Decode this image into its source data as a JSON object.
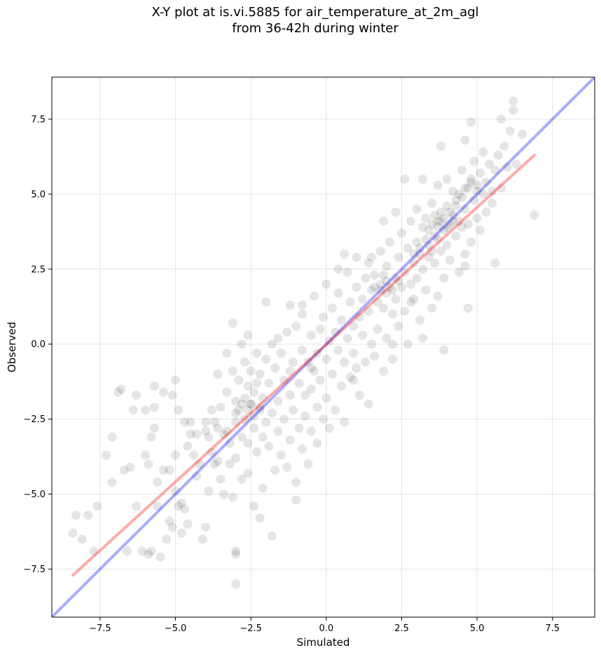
{
  "chart_data": {
    "type": "scatter",
    "title": "X-Y plot at is.vi.5885 for air_temperature_at_2m_agl\nfrom 36-42h during winter",
    "xlabel": "Simulated",
    "ylabel": "Observed",
    "xlim": [
      -9.1,
      8.9
    ],
    "ylim": [
      -9.1,
      8.9
    ],
    "xticks": [
      -7.5,
      -5.0,
      -2.5,
      0.0,
      2.5,
      5.0,
      7.5
    ],
    "xtick_labels": [
      "−7.5",
      "−5.0",
      "−2.5",
      "0.0",
      "2.5",
      "5.0",
      "7.5"
    ],
    "yticks": [
      -7.5,
      -5.0,
      -2.5,
      0.0,
      2.5,
      5.0,
      7.5
    ],
    "ytick_labels": [
      "−7.5",
      "−5.0",
      "−2.5",
      "0.0",
      "2.5",
      "5.0",
      "7.5"
    ],
    "grid": true,
    "colors": {
      "points": "#000000",
      "identity_line": "#0000ff",
      "fit_line": "#ff0000"
    },
    "identity_line": {
      "x": [
        -9.1,
        8.9
      ],
      "y": [
        -9.1,
        8.9
      ]
    },
    "fit_line": {
      "x": [
        -8.4,
        6.9
      ],
      "y": [
        -7.7,
        6.3
      ]
    },
    "points": [
      [
        -8.4,
        -6.3
      ],
      [
        -8.3,
        -5.7
      ],
      [
        -8.1,
        -6.5
      ],
      [
        -7.9,
        -5.7
      ],
      [
        -7.7,
        -6.9
      ],
      [
        -7.6,
        -5.4
      ],
      [
        -7.3,
        -3.7
      ],
      [
        -7.1,
        -3.1
      ],
      [
        -7.1,
        -4.6
      ],
      [
        -6.9,
        -1.6
      ],
      [
        -6.8,
        -1.5
      ],
      [
        -6.7,
        -4.2
      ],
      [
        -6.6,
        -6.9
      ],
      [
        -6.5,
        -4.1
      ],
      [
        -6.4,
        -2.2
      ],
      [
        -6.3,
        -1.7
      ],
      [
        -6.3,
        -5.4
      ],
      [
        -6.1,
        -6.9
      ],
      [
        -6.0,
        -3.7
      ],
      [
        -6.0,
        -2.2
      ],
      [
        -5.9,
        -7.0
      ],
      [
        -5.9,
        -4.0
      ],
      [
        -5.8,
        -3.1
      ],
      [
        -5.8,
        -6.9
      ],
      [
        -5.7,
        -1.4
      ],
      [
        -5.7,
        -2.1
      ],
      [
        -5.7,
        -2.8
      ],
      [
        -5.6,
        -5.4
      ],
      [
        -5.6,
        -4.6
      ],
      [
        -5.5,
        -7.1
      ],
      [
        -5.4,
        -1.6
      ],
      [
        -5.4,
        -4.2
      ],
      [
        -5.3,
        -6.5
      ],
      [
        -5.2,
        -5.9
      ],
      [
        -5.1,
        -1.7
      ],
      [
        -5.1,
        -6.1
      ],
      [
        -5.0,
        -1.2
      ],
      [
        -5.0,
        -3.7
      ],
      [
        -5.0,
        -4.9
      ],
      [
        -4.9,
        -5.4
      ],
      [
        -4.9,
        -2.2
      ],
      [
        -4.8,
        -5.3
      ],
      [
        -4.8,
        -6.3
      ],
      [
        -4.7,
        -2.6
      ],
      [
        -4.7,
        -5.5
      ],
      [
        -4.6,
        -3.4
      ],
      [
        -4.6,
        -6.0
      ],
      [
        -4.5,
        -2.6
      ],
      [
        -4.4,
        -3.7
      ],
      [
        -4.3,
        -4.4
      ],
      [
        -4.3,
        -3.0
      ],
      [
        -4.2,
        -4.0
      ],
      [
        -4.1,
        -6.5
      ],
      [
        -4.0,
        -6.1
      ],
      [
        -4.0,
        -2.6
      ],
      [
        -3.9,
        -3.1
      ],
      [
        -3.9,
        -4.9
      ],
      [
        -3.8,
        -2.2
      ],
      [
        -3.8,
        -3.6
      ],
      [
        -3.7,
        -2.6
      ],
      [
        -3.6,
        -3.9
      ],
      [
        -3.6,
        -2.8
      ],
      [
        -3.5,
        -4.5
      ],
      [
        -3.5,
        -2.1
      ],
      [
        -3.4,
        -3.0
      ],
      [
        -3.4,
        -5.0
      ],
      [
        -3.3,
        -2.9
      ],
      [
        -3.3,
        -1.6
      ],
      [
        -3.3,
        -0.3
      ],
      [
        -3.2,
        -3.3
      ],
      [
        -3.2,
        -4.0
      ],
      [
        -3.1,
        -0.9
      ],
      [
        -3.1,
        -5.1
      ],
      [
        -3.0,
        -2.6
      ],
      [
        -3.0,
        -1.9
      ],
      [
        -3.0,
        -3.8
      ],
      [
        -3.0,
        -6.9
      ],
      [
        -3.0,
        -7.0
      ],
      [
        -3.0,
        -8.0
      ],
      [
        -2.9,
        -1.2
      ],
      [
        -2.9,
        -2.2
      ],
      [
        -2.8,
        0.0
      ],
      [
        -2.8,
        -3.1
      ],
      [
        -2.8,
        -4.5
      ],
      [
        -2.7,
        -1.8
      ],
      [
        -2.7,
        -2.5
      ],
      [
        -2.7,
        -0.6
      ],
      [
        -2.6,
        -3.3
      ],
      [
        -2.6,
        -1.4
      ],
      [
        -2.6,
        -4.3
      ],
      [
        -2.5,
        -2.0
      ],
      [
        -2.5,
        -0.9
      ],
      [
        -2.4,
        -2.8
      ],
      [
        -2.4,
        -1.6
      ],
      [
        -2.4,
        -5.4
      ],
      [
        -2.3,
        -3.6
      ],
      [
        -2.3,
        -0.3
      ],
      [
        -2.2,
        -2.2
      ],
      [
        -2.2,
        -1.0
      ],
      [
        -2.2,
        -5.8
      ],
      [
        -2.1,
        -3.1
      ],
      [
        -2.1,
        -1.8
      ],
      [
        -2.1,
        -4.8
      ],
      [
        -2.0,
        -0.5
      ],
      [
        -2.0,
        -2.6
      ],
      [
        -1.9,
        -3.4
      ],
      [
        -1.9,
        -1.3
      ],
      [
        -1.8,
        0.0
      ],
      [
        -1.8,
        -2.3
      ],
      [
        -1.8,
        -6.4
      ],
      [
        -1.7,
        -4.2
      ],
      [
        -1.7,
        -0.8
      ],
      [
        -1.6,
        -2.9
      ],
      [
        -1.6,
        -1.9
      ],
      [
        -1.5,
        -3.7
      ],
      [
        -1.5,
        -0.3
      ],
      [
        -1.4,
        -1.2
      ],
      [
        -1.4,
        -2.5
      ],
      [
        -1.3,
        -4.1
      ],
      [
        -1.3,
        0.4
      ],
      [
        -1.2,
        -1.7
      ],
      [
        -1.2,
        -3.2
      ],
      [
        -1.2,
        1.3
      ],
      [
        -1.1,
        -0.6
      ],
      [
        -1.1,
        -2.2
      ],
      [
        -1.0,
        -4.6
      ],
      [
        -1.0,
        -5.2
      ],
      [
        -1.0,
        0.6
      ],
      [
        -0.9,
        -1.3
      ],
      [
        -0.9,
        -2.8
      ],
      [
        -0.8,
        -0.2
      ],
      [
        -0.8,
        -3.5
      ],
      [
        -0.8,
        1.0
      ],
      [
        -0.7,
        -1.7
      ],
      [
        -0.7,
        -2.4
      ],
      [
        -0.6,
        -0.6
      ],
      [
        -0.6,
        -4.0
      ],
      [
        -0.5,
        0.3
      ],
      [
        -0.5,
        -1.5
      ],
      [
        -0.5,
        -2.9
      ],
      [
        -0.4,
        -0.9
      ],
      [
        -0.4,
        1.6
      ],
      [
        -0.3,
        -2.1
      ],
      [
        -0.3,
        -0.3
      ],
      [
        -0.3,
        -3.3
      ],
      [
        -0.2,
        0.5
      ],
      [
        -0.2,
        -1.2
      ],
      [
        -0.1,
        -2.5
      ],
      [
        -0.1,
        0.9
      ],
      [
        0.0,
        -0.5
      ],
      [
        0.0,
        -1.8
      ],
      [
        0.0,
        2.0
      ],
      [
        0.1,
        0.1
      ],
      [
        0.1,
        -2.8
      ],
      [
        0.2,
        1.2
      ],
      [
        0.2,
        -1.0
      ],
      [
        0.3,
        0.4
      ],
      [
        0.3,
        -2.2
      ],
      [
        0.4,
        -0.2
      ],
      [
        0.4,
        1.7
      ],
      [
        0.5,
        -1.4
      ],
      [
        0.5,
        0.8
      ],
      [
        0.6,
        -0.6
      ],
      [
        0.6,
        -2.6
      ],
      [
        0.7,
        2.4
      ],
      [
        0.7,
        0.2
      ],
      [
        0.8,
        -1.1
      ],
      [
        0.8,
        1.4
      ],
      [
        0.9,
        -0.3
      ],
      [
        0.9,
        0.6
      ],
      [
        1.0,
        1.9
      ],
      [
        1.0,
        -0.8
      ],
      [
        1.0,
        2.9
      ],
      [
        1.1,
        0.9
      ],
      [
        1.1,
        -1.7
      ],
      [
        1.2,
        1.5
      ],
      [
        1.2,
        0.3
      ],
      [
        1.3,
        2.2
      ],
      [
        1.3,
        -0.6
      ],
      [
        1.4,
        1.1
      ],
      [
        1.4,
        2.7
      ],
      [
        1.5,
        0.0
      ],
      [
        1.5,
        1.8
      ],
      [
        1.6,
        -0.4
      ],
      [
        1.6,
        2.3
      ],
      [
        1.7,
        1.4
      ],
      [
        1.7,
        0.5
      ],
      [
        1.8,
        2.0
      ],
      [
        1.8,
        3.1
      ],
      [
        1.9,
        1.2
      ],
      [
        1.9,
        -0.9
      ],
      [
        2.0,
        1.7
      ],
      [
        2.0,
        2.6
      ],
      [
        2.0,
        0.2
      ],
      [
        2.1,
        1.9
      ],
      [
        2.1,
        3.4
      ],
      [
        2.2,
        1.0
      ],
      [
        2.2,
        -0.5
      ],
      [
        2.3,
        2.2
      ],
      [
        2.3,
        1.5
      ],
      [
        2.4,
        2.9
      ],
      [
        2.4,
        0.6
      ],
      [
        2.5,
        1.9
      ],
      [
        2.5,
        3.7
      ],
      [
        2.6,
        2.4
      ],
      [
        2.6,
        1.1
      ],
      [
        2.7,
        3.2
      ],
      [
        2.7,
        0.0
      ],
      [
        2.8,
        2.0
      ],
      [
        2.8,
        4.1
      ],
      [
        2.9,
        2.7
      ],
      [
        2.9,
        1.5
      ],
      [
        3.0,
        3.4
      ],
      [
        3.0,
        2.2
      ],
      [
        3.0,
        4.5
      ],
      [
        3.1,
        0.8
      ],
      [
        3.1,
        3.0
      ],
      [
        3.2,
        2.5
      ],
      [
        3.2,
        3.9
      ],
      [
        3.3,
        1.8
      ],
      [
        3.3,
        4.2
      ],
      [
        3.4,
        3.3
      ],
      [
        3.4,
        2.9
      ],
      [
        3.5,
        4.7
      ],
      [
        3.5,
        1.2
      ],
      [
        3.6,
        3.6
      ],
      [
        3.6,
        2.7
      ],
      [
        3.7,
        4.1
      ],
      [
        3.7,
        5.3
      ],
      [
        3.8,
        3.1
      ],
      [
        3.8,
        4.4
      ],
      [
        3.9,
        2.2
      ],
      [
        3.9,
        3.8
      ],
      [
        4.0,
        4.6
      ],
      [
        4.0,
        3.3
      ],
      [
        4.0,
        5.5
      ],
      [
        4.1,
        4.0
      ],
      [
        4.1,
        2.8
      ],
      [
        4.2,
        4.3
      ],
      [
        4.2,
        5.1
      ],
      [
        4.3,
        3.6
      ],
      [
        4.3,
        4.8
      ],
      [
        4.4,
        2.4
      ],
      [
        4.4,
        4.1
      ],
      [
        4.5,
        5.8
      ],
      [
        4.5,
        3.9
      ],
      [
        4.6,
        4.5
      ],
      [
        4.6,
        3.0
      ],
      [
        4.7,
        5.2
      ],
      [
        4.7,
        4.0
      ],
      [
        4.8,
        5.5
      ],
      [
        4.8,
        3.4
      ],
      [
        4.9,
        4.8
      ],
      [
        4.9,
        6.1
      ],
      [
        5.0,
        5.1
      ],
      [
        5.0,
        4.2
      ],
      [
        5.1,
        5.7
      ],
      [
        5.1,
        3.8
      ],
      [
        5.2,
        6.4
      ],
      [
        5.2,
        5.0
      ],
      [
        5.3,
        4.4
      ],
      [
        5.3,
        5.4
      ],
      [
        5.4,
        6.0
      ],
      [
        5.5,
        5.1
      ],
      [
        5.5,
        4.7
      ],
      [
        5.6,
        5.8
      ],
      [
        5.7,
        6.3
      ],
      [
        5.8,
        5.2
      ],
      [
        5.9,
        6.6
      ],
      [
        6.0,
        5.9
      ],
      [
        6.1,
        7.1
      ],
      [
        6.2,
        8.1
      ],
      [
        6.3,
        6.0
      ],
      [
        6.5,
        7.0
      ],
      [
        6.9,
        4.3
      ],
      [
        4.8,
        7.4
      ],
      [
        4.6,
        6.8
      ],
      [
        5.8,
        7.5
      ],
      [
        6.2,
        7.8
      ],
      [
        3.8,
        6.6
      ],
      [
        2.6,
        5.5
      ],
      [
        3.2,
        5.5
      ],
      [
        1.9,
        4.1
      ],
      [
        2.3,
        4.4
      ],
      [
        0.4,
        2.5
      ],
      [
        -0.8,
        1.3
      ],
      [
        -2.0,
        1.4
      ],
      [
        -3.1,
        0.7
      ],
      [
        -4.0,
        -2.9
      ],
      [
        -3.7,
        -4.0
      ],
      [
        -4.5,
        -3.0
      ],
      [
        -5.2,
        -4.2
      ],
      [
        -2.3,
        -1.3
      ],
      [
        -1.2,
        -0.9
      ],
      [
        0.9,
        -1.2
      ],
      [
        1.4,
        -2.0
      ],
      [
        2.2,
        0.0
      ],
      [
        3.2,
        0.2
      ],
      [
        3.9,
        -0.2
      ],
      [
        4.7,
        1.2
      ],
      [
        5.6,
        2.7
      ],
      [
        4.6,
        2.6
      ],
      [
        3.7,
        1.6
      ],
      [
        2.8,
        1.4
      ],
      [
        1.5,
        2.9
      ],
      [
        0.6,
        3.0
      ],
      [
        -0.5,
        -0.8
      ],
      [
        -1.6,
        0.2
      ],
      [
        -2.6,
        0.3
      ],
      [
        -3.6,
        -1.0
      ],
      [
        3.5,
        4.0
      ],
      [
        3.7,
        3.9
      ],
      [
        3.9,
        4.2
      ],
      [
        4.1,
        4.4
      ],
      [
        4.3,
        4.6
      ],
      [
        3.6,
        4.3
      ],
      [
        3.8,
        4.1
      ],
      [
        4.0,
        3.9
      ],
      [
        4.2,
        4.1
      ],
      [
        3.4,
        3.8
      ],
      [
        4.4,
        5.0
      ],
      [
        4.6,
        5.2
      ],
      [
        4.8,
        5.4
      ],
      [
        5.0,
        5.3
      ],
      [
        4.5,
        4.9
      ],
      [
        3.3,
        3.5
      ],
      [
        3.1,
        3.2
      ],
      [
        2.9,
        3.0
      ],
      [
        3.5,
        3.1
      ],
      [
        3.7,
        3.5
      ],
      [
        1.8,
        1.8
      ],
      [
        2.0,
        2.1
      ],
      [
        2.2,
        1.8
      ],
      [
        1.6,
        1.9
      ],
      [
        1.9,
        2.3
      ],
      [
        2.4,
        2.1
      ],
      [
        -2.6,
        -2.2
      ],
      [
        -2.4,
        -2.4
      ],
      [
        -2.8,
        -2.0
      ],
      [
        -2.5,
        -2.0
      ],
      [
        -3.0,
        -2.3
      ],
      [
        -2.2,
        -2.1
      ]
    ]
  }
}
